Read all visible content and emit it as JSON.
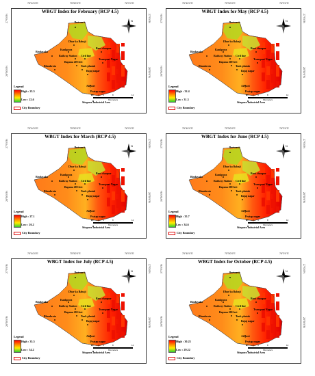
{
  "coords": {
    "top_left": "75°40'0\"E",
    "top_mid": "75°50'0\"E",
    "top_right": "76°0'0\"E",
    "left_top": "27°0'0\"N",
    "left_bottom": "26°50'0\"N",
    "right_top": "27°0'0\"N",
    "right_bottom": "26°50'0\"N"
  },
  "legend": {
    "title": "Legend",
    "city_boundary": "City Boundary"
  },
  "scale": {
    "ticks": [
      "0",
      "2",
      "4",
      "8",
      "12"
    ],
    "unit": "Kilometers"
  },
  "north_label": "N",
  "places": {
    "jhotwara": "Jhotwara",
    "bindayaka": "Bindayaka",
    "kankpura": "Kankpura",
    "dhar_ka_bahaji": "Dhar ka Bahaji",
    "bani_chaupar": "Bani chaupar",
    "railway_station": "Railway Station",
    "civil_line": "Civil line",
    "transport_nagar": "Transport Nagar",
    "bapana_200_feet": "Bapana 200 feet",
    "bhankrota": "Bhankrota",
    "tonk_phatak": "Tonk phatak",
    "bajaj_nagar": "Bajaj nagar",
    "airport": "Airport",
    "pratap_nagar": "Pratap nagar",
    "sitapura": "Sitapura Industrial Area"
  },
  "panels": [
    {
      "title": "WBGT Index for February (RCP 4.5)",
      "high": "High : 23.5",
      "low": "Low : 22.6"
    },
    {
      "title": "WBGT Index for May (RCP 4.5)",
      "high": "High : 32.4",
      "low": "Low : 31.3"
    },
    {
      "title": "WBGT Index for March (RCP 4.5)",
      "high": "High : 27.1",
      "low": "Low : 26.2"
    },
    {
      "title": "WBGT Index for June (RCP 4.5)",
      "high": "High : 35.7",
      "low": "Low : 34.6"
    },
    {
      "title": "WBGT Index for July (RCP 4.5)",
      "high": "High : 35.5",
      "low": "Low : 34.2"
    },
    {
      "title": "WBGT Index for October (RCP 4.5)",
      "high": "High : 30.23",
      "low": "Low : 29.22"
    }
  ]
}
